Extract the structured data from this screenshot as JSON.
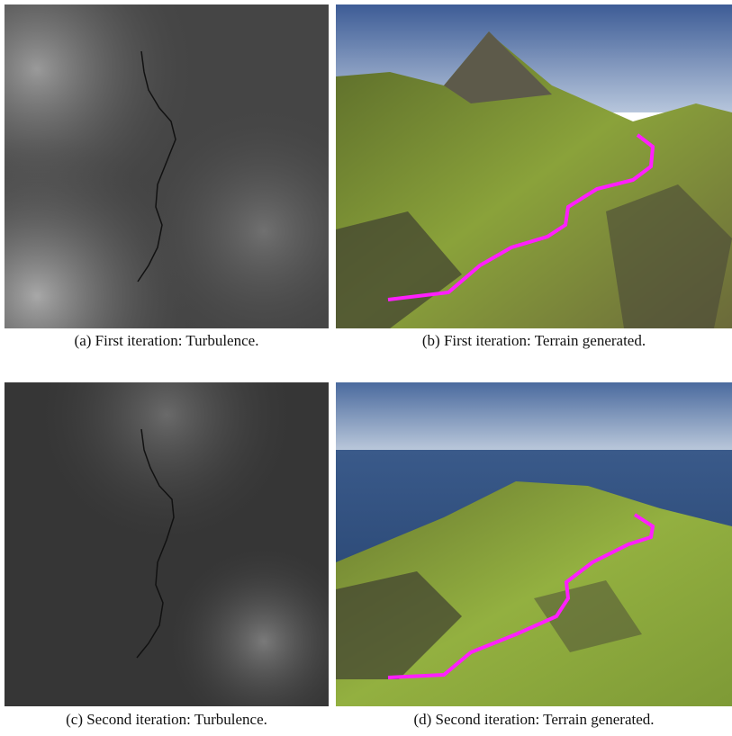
{
  "figure": {
    "panels": [
      {
        "caption": "(a) First iteration: Turbulence."
      },
      {
        "caption": "(b) First iteration: Terrain generated."
      },
      {
        "caption": "(c) Second iteration: Turbulence."
      },
      {
        "caption": "(d) Second iteration: Terrain generated."
      }
    ]
  }
}
